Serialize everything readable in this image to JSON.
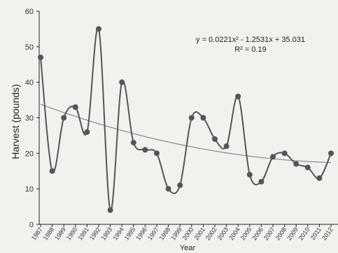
{
  "chart_data": {
    "type": "line",
    "title": "",
    "xlabel": "Year",
    "ylabel": "Harvest (pounds)",
    "ylim": [
      0,
      60
    ],
    "yticks": [
      0,
      10,
      20,
      30,
      40,
      50,
      60
    ],
    "grid": false,
    "series": [
      {
        "x": [
          "1987",
          "1988",
          "1989",
          "1990",
          "1991",
          "1992",
          "1993",
          "1994",
          "1995",
          "1996",
          "1997",
          "1998",
          "1999",
          "2000",
          "2001",
          "2002",
          "2003",
          "2004",
          "2005",
          "2006",
          "2007",
          "2008",
          "2009",
          "2010",
          "2011",
          "2012"
        ],
        "values": [
          47,
          15,
          30,
          33,
          26,
          55,
          4,
          40,
          23,
          21,
          20,
          10,
          11,
          30,
          30,
          24,
          22,
          36,
          14,
          12,
          19,
          20,
          17,
          16,
          13,
          20
        ],
        "color": "#555555"
      }
    ],
    "trendline": {
      "type": "polynomial",
      "coefficients": [
        0.0221,
        -1.2531,
        35.031
      ],
      "color": "#8a8a8a"
    },
    "annotations": {
      "equation": "y = 0.0221x² - 1.2531x + 35.031",
      "r_squared": "R² = 0.19"
    }
  }
}
